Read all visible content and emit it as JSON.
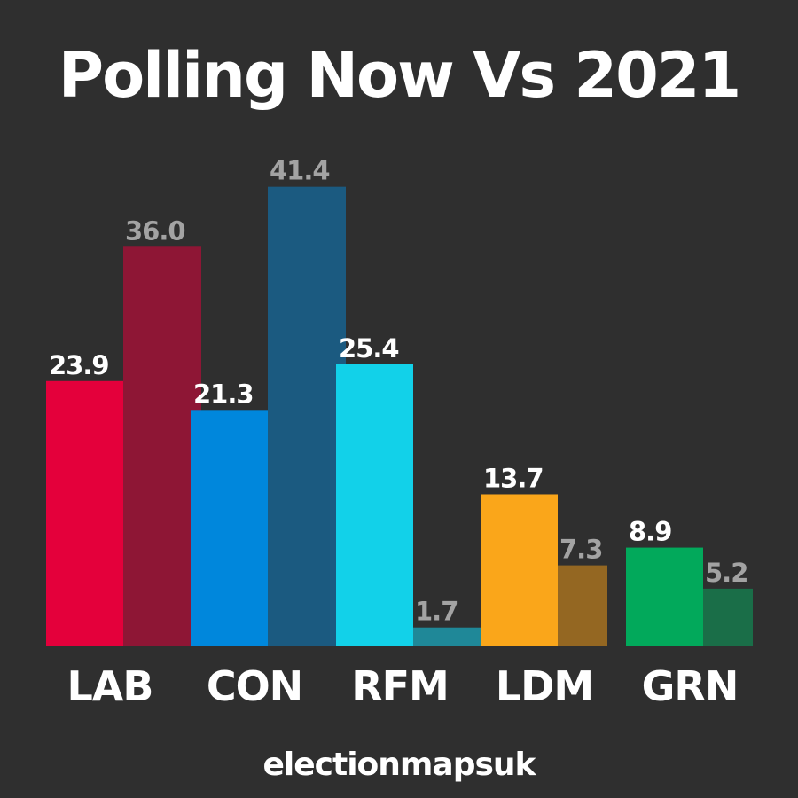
{
  "title": "Polling Now Vs 2021",
  "footer": "electionmapsuk",
  "colors": {
    "background": "#2f2f2f",
    "text": "#ffffff",
    "muted_label": "#a3a3a3"
  },
  "chart_data": {
    "type": "bar",
    "categories": [
      "LAB",
      "CON",
      "RFM",
      "LDM",
      "GRN"
    ],
    "series": [
      {
        "values": [
          23.9,
          21.3,
          25.4,
          13.7,
          8.9
        ],
        "colors": [
          "#e4003b",
          "#0087dc",
          "#12d1e9",
          "#faa61a",
          "#02a95b"
        ]
      },
      {
        "values": [
          36.0,
          41.4,
          1.7,
          7.3,
          5.2
        ],
        "colors": [
          "#8e1635",
          "#1b5a80",
          "#1f8898",
          "#946722",
          "#1a6e48"
        ]
      }
    ],
    "data_labels": [
      [
        "23.9",
        "21.3",
        "25.4",
        "13.7",
        "8.9"
      ],
      [
        "36.0",
        "41.4",
        "1.7",
        "7.3",
        "5.2"
      ]
    ],
    "ylim": [
      0,
      45
    ],
    "grid": false,
    "legend": "none"
  }
}
